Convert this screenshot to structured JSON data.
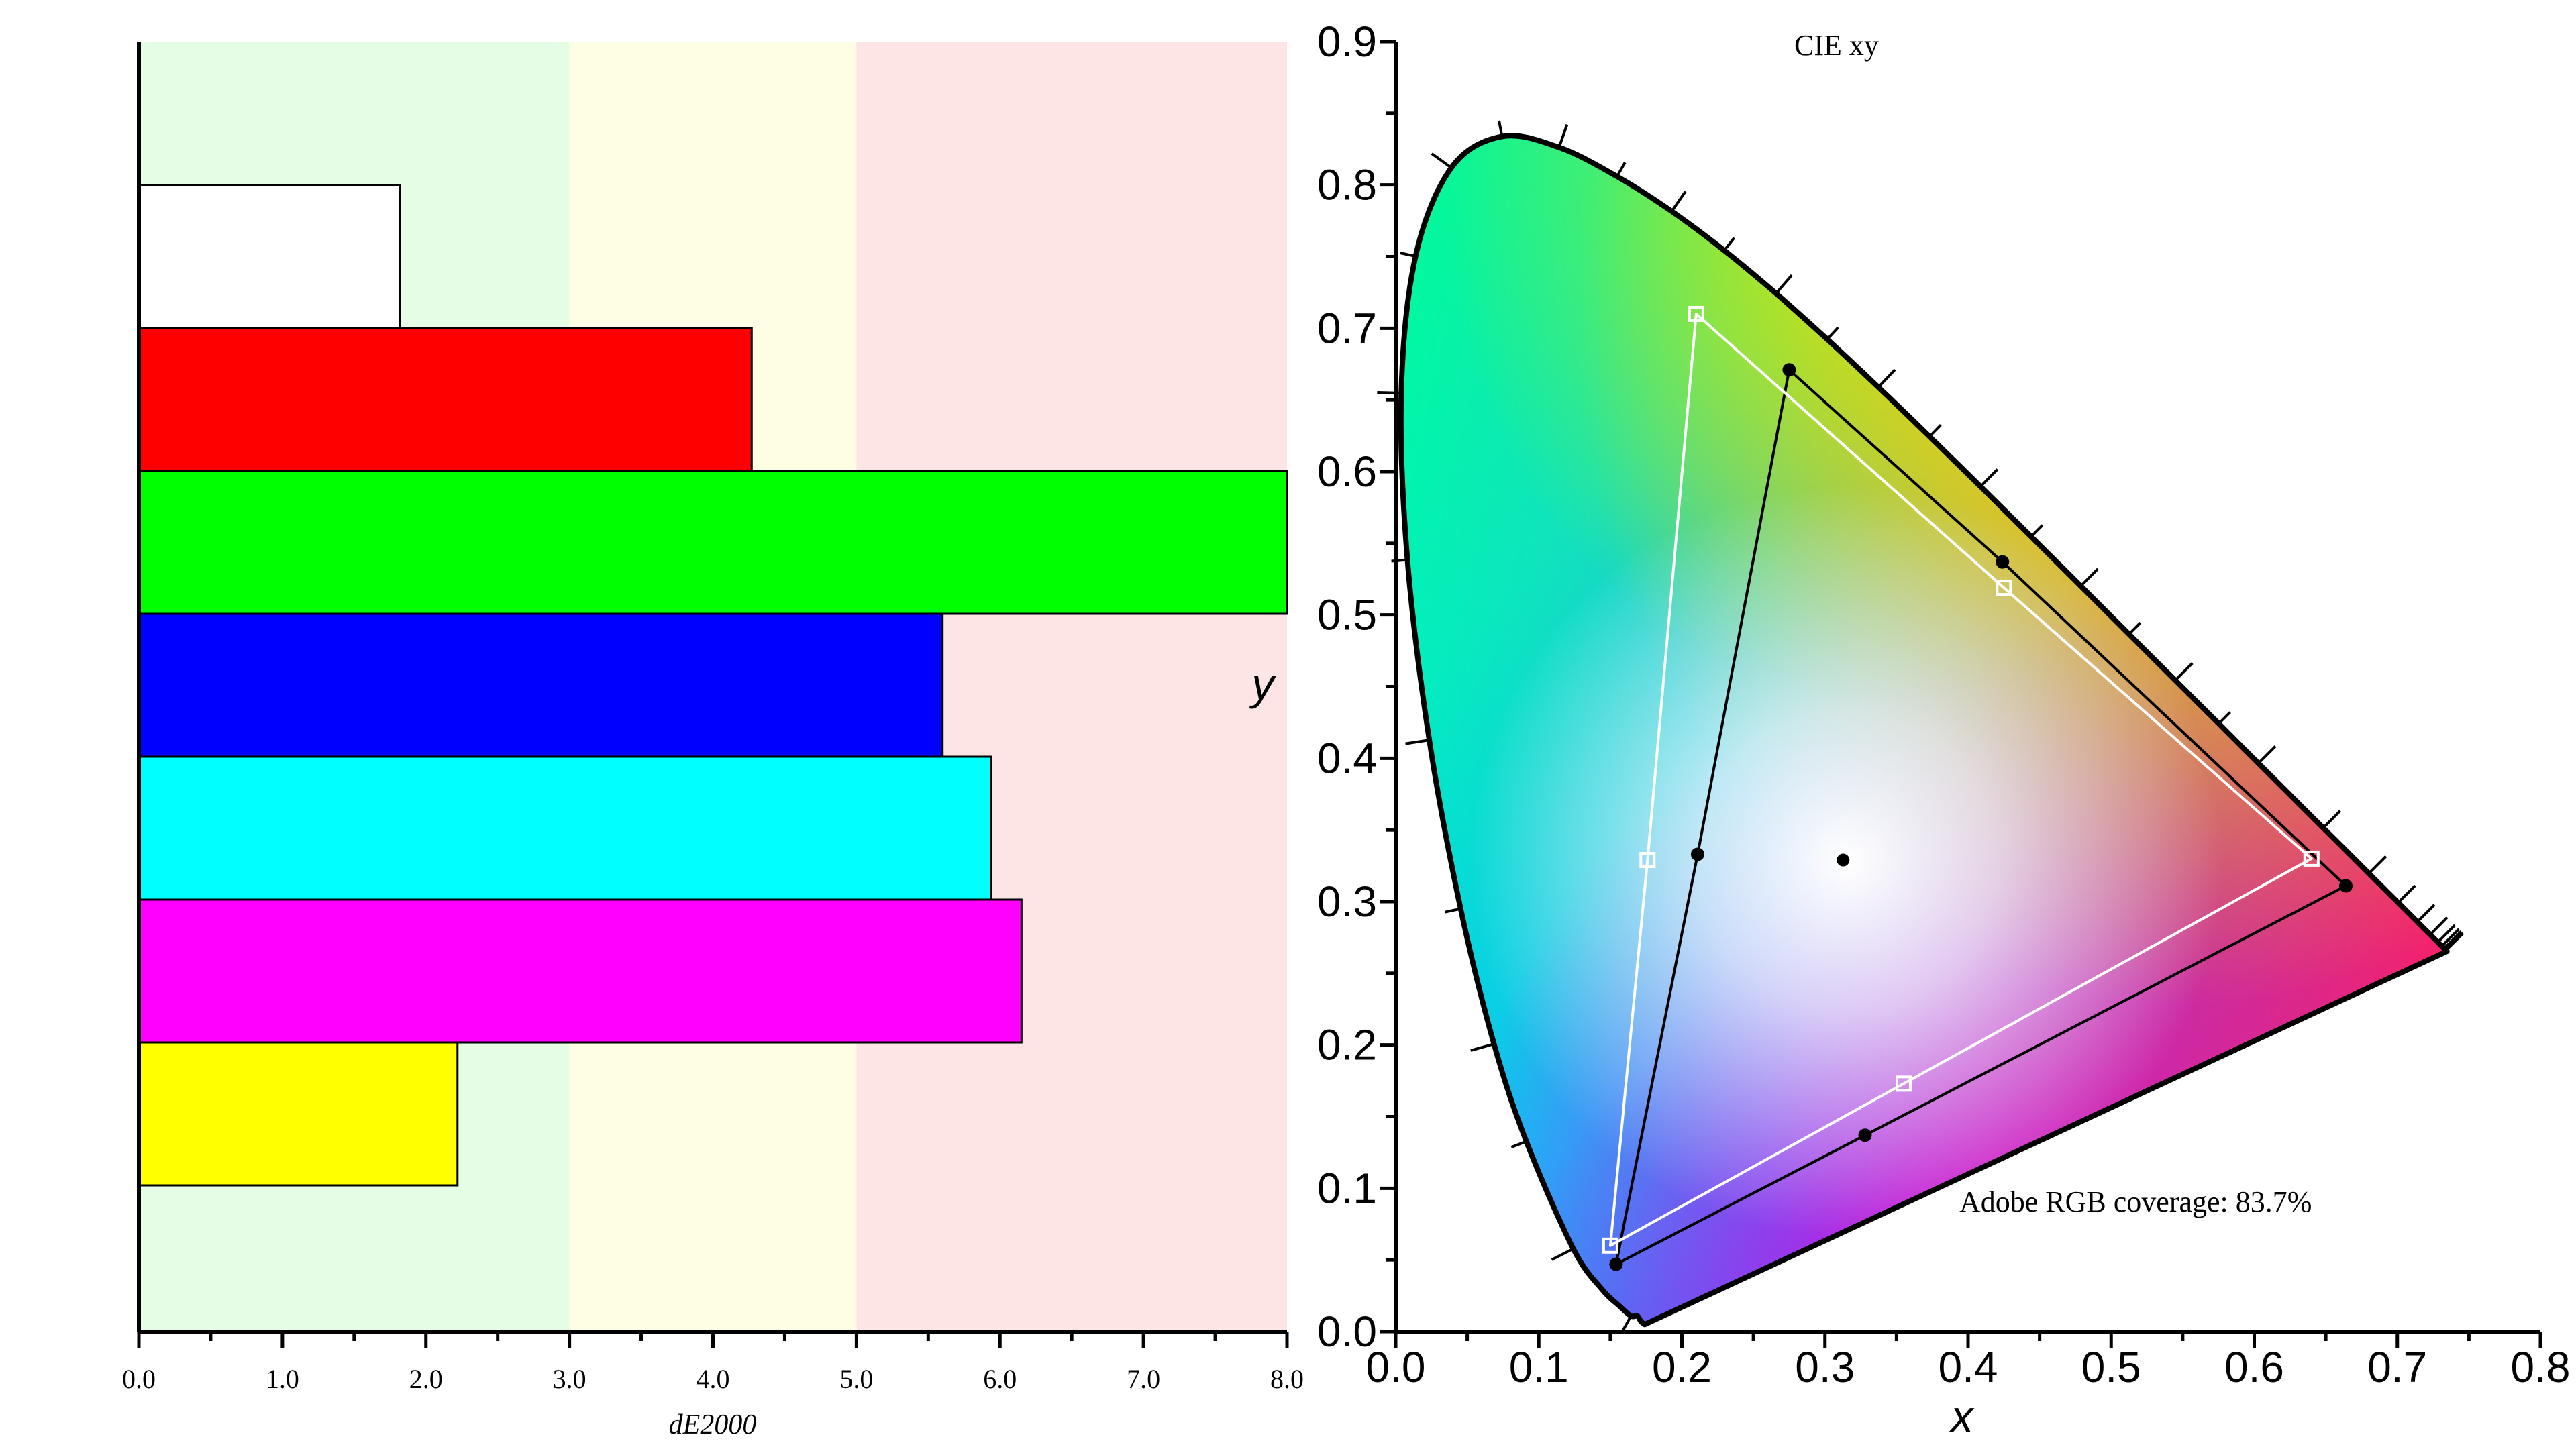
{
  "chart_data": [
    {
      "type": "bar",
      "orientation": "horizontal",
      "title": "",
      "xlabel": "dE2000",
      "ylabel": "",
      "xlim": [
        0,
        8
      ],
      "x_ticks": [
        "0.0",
        "1.0",
        "2.0",
        "3.0",
        "4.0",
        "5.0",
        "6.0",
        "7.0",
        "8.0"
      ],
      "grid": false,
      "legend": "none",
      "background_bands": [
        {
          "from": 0,
          "to": 3,
          "color": "#e5fde5"
        },
        {
          "from": 3,
          "to": 5,
          "color": "#fefee5"
        },
        {
          "from": 5,
          "to": 8,
          "color": "#fde5e5"
        }
      ],
      "bars": [
        {
          "color": "#ffffff",
          "value": 1.82
        },
        {
          "color": "#ff0000",
          "value": 4.27
        },
        {
          "color": "#00ff00",
          "value": 8.0
        },
        {
          "color": "#0000ff",
          "value": 5.6
        },
        {
          "color": "#00ffff",
          "value": 5.94
        },
        {
          "color": "#ff00ff",
          "value": 6.15
        },
        {
          "color": "#ffff00",
          "value": 2.22
        }
      ]
    },
    {
      "type": "scatter",
      "title": "CIE xy",
      "xlabel": "x",
      "ylabel": "y",
      "xlim": [
        0,
        0.8
      ],
      "ylim": [
        0,
        0.9
      ],
      "x_ticks": [
        "0.0",
        "0.1",
        "0.2",
        "0.3",
        "0.4",
        "0.5",
        "0.6",
        "0.7",
        "0.8"
      ],
      "y_ticks": [
        "0.0",
        "0.1",
        "0.2",
        "0.3",
        "0.4",
        "0.5",
        "0.6",
        "0.7",
        "0.8",
        "0.9"
      ],
      "grid": false,
      "legend": "none",
      "annotation": "Adobe RGB coverage: 83.7%",
      "spectral_locus": [
        [
          0.1741,
          0.005
        ],
        [
          0.1714,
          0.0071
        ],
        [
          0.1689,
          0.0109
        ],
        [
          0.1644,
          0.0109
        ],
        [
          0.1566,
          0.0177
        ],
        [
          0.144,
          0.0297
        ],
        [
          0.1241,
          0.0578
        ],
        [
          0.0913,
          0.1327
        ],
        [
          0.0687,
          0.2007
        ],
        [
          0.0454,
          0.295
        ],
        [
          0.0235,
          0.4127
        ],
        [
          0.0082,
          0.5384
        ],
        [
          0.0039,
          0.6548
        ],
        [
          0.0139,
          0.7502
        ],
        [
          0.0389,
          0.812
        ],
        [
          0.0743,
          0.8338
        ],
        [
          0.1142,
          0.8262
        ],
        [
          0.1547,
          0.8059
        ],
        [
          0.1929,
          0.7816
        ],
        [
          0.2296,
          0.7543
        ],
        [
          0.2658,
          0.7243
        ],
        [
          0.3016,
          0.6923
        ],
        [
          0.3373,
          0.6589
        ],
        [
          0.3731,
          0.6245
        ],
        [
          0.4087,
          0.5896
        ],
        [
          0.4441,
          0.5547
        ],
        [
          0.4788,
          0.5202
        ],
        [
          0.5125,
          0.4866
        ],
        [
          0.5448,
          0.4544
        ],
        [
          0.5752,
          0.4242
        ],
        [
          0.6029,
          0.3965
        ],
        [
          0.627,
          0.3725
        ],
        [
          0.6482,
          0.3514
        ],
        [
          0.6658,
          0.334
        ],
        [
          0.6801,
          0.3197
        ],
        [
          0.6915,
          0.3083
        ],
        [
          0.7006,
          0.2993
        ],
        [
          0.7079,
          0.292
        ],
        [
          0.714,
          0.2859
        ],
        [
          0.719,
          0.2809
        ],
        [
          0.723,
          0.277
        ],
        [
          0.726,
          0.274
        ],
        [
          0.7283,
          0.2717
        ],
        [
          0.73,
          0.27
        ],
        [
          0.7311,
          0.2689
        ],
        [
          0.732,
          0.268
        ],
        [
          0.7327,
          0.2673
        ],
        [
          0.7334,
          0.2666
        ],
        [
          0.734,
          0.266
        ],
        [
          0.7344,
          0.2656
        ],
        [
          0.7347,
          0.2653
        ]
      ],
      "locus_tick_wavelengths_nm": [
        380,
        400,
        420,
        440,
        460,
        470,
        480,
        490,
        500,
        510,
        520,
        530,
        540,
        550,
        560,
        570,
        580,
        590,
        600,
        610,
        620,
        630,
        640,
        650,
        660,
        680,
        700
      ],
      "series": [
        {
          "marker": "filled-circle",
          "color": "#000000",
          "points": [
            [
              0.275,
              0.671
            ],
            [
              0.424,
              0.537
            ],
            [
              0.664,
              0.311
            ],
            [
              0.328,
              0.137
            ],
            [
              0.154,
              0.047
            ],
            [
              0.211,
              0.333
            ]
          ]
        },
        {
          "marker": "open-square",
          "color": "#ffffff",
          "points": [
            [
              0.21,
              0.71
            ],
            [
              0.425,
              0.519
            ],
            [
              0.64,
              0.33
            ],
            [
              0.355,
              0.173
            ],
            [
              0.15,
              0.06
            ],
            [
              0.176,
              0.329
            ]
          ]
        }
      ],
      "white_point": [
        0.3127,
        0.329
      ]
    }
  ]
}
